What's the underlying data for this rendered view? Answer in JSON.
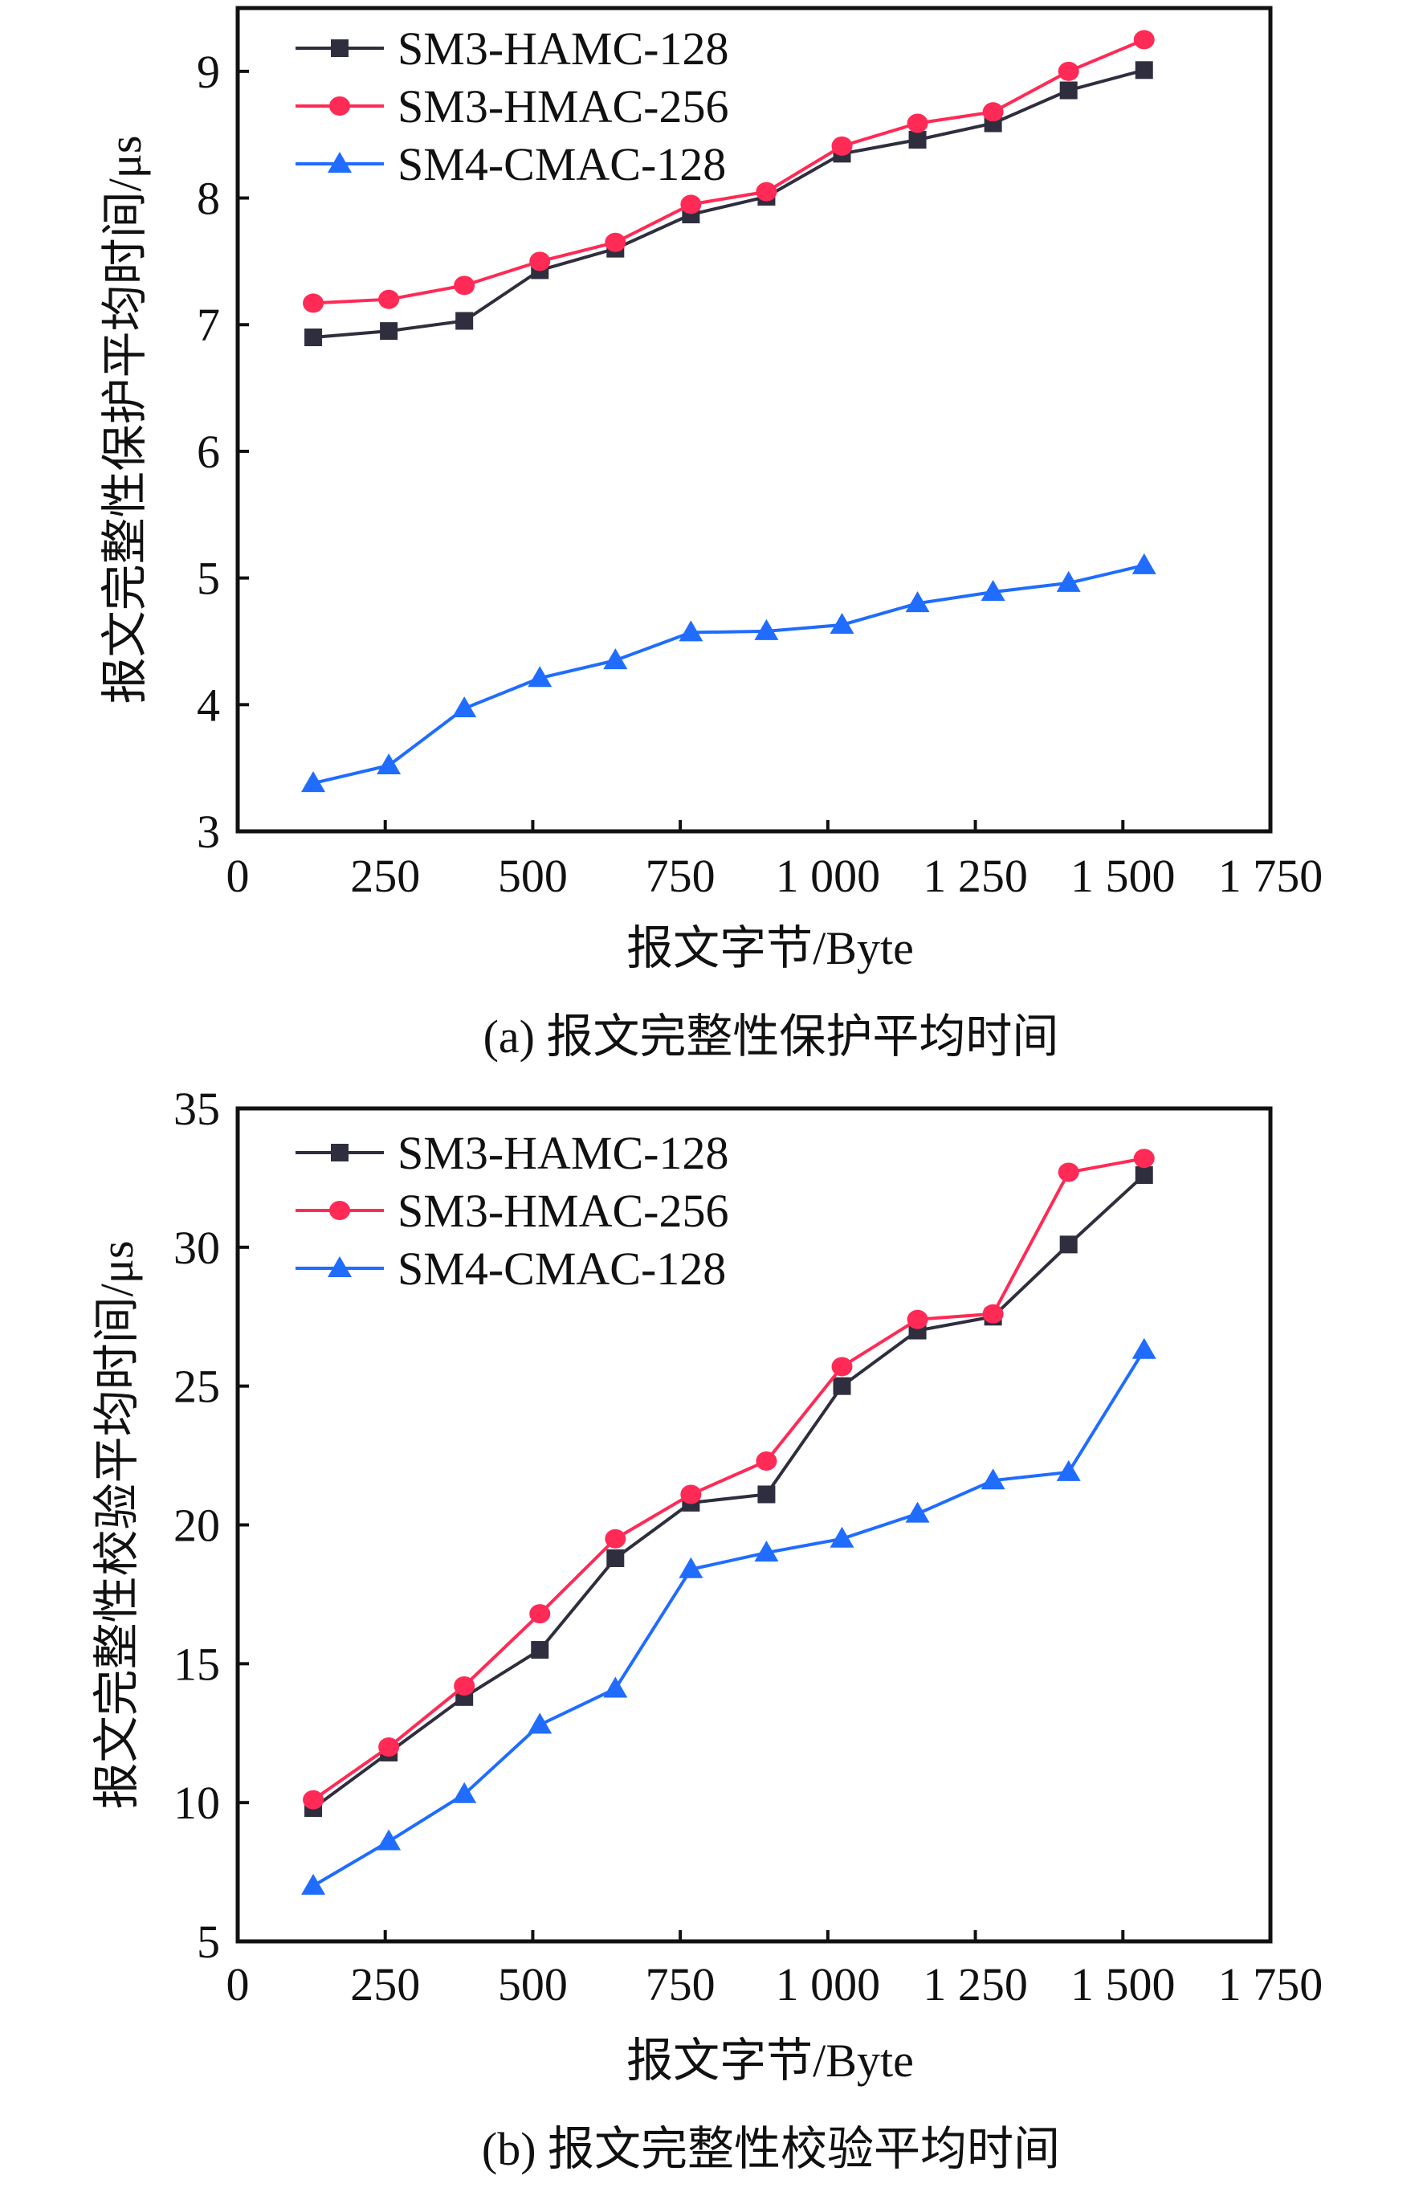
{
  "chart_data": [
    {
      "type": "line",
      "title": "(a) 报文完整性保护平均时间",
      "xlabel": "报文字节/Byte",
      "ylabel": "报文完整性保护平均时间/μs",
      "xlim": [
        0,
        1750
      ],
      "ylim": [
        3,
        9.5
      ],
      "xticks": [
        0,
        250,
        500,
        750,
        1000,
        1250,
        1500,
        1750
      ],
      "xtick_labels": [
        "0",
        "250",
        "500",
        "750",
        "1 000",
        "1 250",
        "1 500",
        "1 750"
      ],
      "yticks": [
        3,
        4,
        5,
        6,
        7,
        8,
        9
      ],
      "ytick_labels": [
        "3",
        "4",
        "5",
        "6",
        "7",
        "8",
        "9"
      ],
      "grid": false,
      "legend_position": "top-left",
      "x": [
        128,
        256,
        384,
        512,
        640,
        768,
        896,
        1024,
        1152,
        1280,
        1408,
        1536
      ],
      "series": [
        {
          "name": "SM3-HAMC-128",
          "marker": "square",
          "color": "#2e2e3e",
          "values": [
            6.9,
            6.95,
            7.03,
            7.43,
            7.6,
            7.87,
            8.01,
            8.35,
            8.46,
            8.59,
            8.85,
            9.01
          ]
        },
        {
          "name": "SM3-HMAC-256",
          "marker": "circle",
          "color": "#ff2a55",
          "values": [
            7.17,
            7.2,
            7.31,
            7.5,
            7.65,
            7.95,
            8.05,
            8.41,
            8.59,
            8.68,
            9.0,
            9.25
          ]
        },
        {
          "name": "SM4-CMAC-128",
          "marker": "triangle",
          "color": "#1f6cff",
          "values": [
            3.38,
            3.52,
            3.97,
            4.21,
            4.35,
            4.57,
            4.58,
            4.63,
            4.8,
            4.89,
            4.96,
            5.1
          ]
        }
      ]
    },
    {
      "type": "line",
      "title": "(b) 报文完整性校验平均时间",
      "xlabel": "报文字节/Byte",
      "ylabel": "报文完整性校验平均时间/μs",
      "xlim": [
        0,
        1750
      ],
      "ylim": [
        5,
        35
      ],
      "xticks": [
        0,
        250,
        500,
        750,
        1000,
        1250,
        1500,
        1750
      ],
      "xtick_labels": [
        "0",
        "250",
        "500",
        "750",
        "1 000",
        "1 250",
        "1 500",
        "1 750"
      ],
      "yticks": [
        5,
        10,
        15,
        20,
        25,
        30,
        35
      ],
      "ytick_labels": [
        "5",
        "10",
        "15",
        "20",
        "25",
        "30",
        "35"
      ],
      "grid": false,
      "legend_position": "top-left",
      "x": [
        128,
        256,
        384,
        512,
        640,
        768,
        896,
        1024,
        1152,
        1280,
        1408,
        1536
      ],
      "series": [
        {
          "name": "SM3-HAMC-128",
          "marker": "square",
          "color": "#2e2e3e",
          "values": [
            9.8,
            11.8,
            13.8,
            15.5,
            18.8,
            20.8,
            21.1,
            25.0,
            27.0,
            27.5,
            30.1,
            32.6
          ]
        },
        {
          "name": "SM3-HMAC-256",
          "marker": "circle",
          "color": "#ff2a55",
          "values": [
            10.1,
            12.0,
            14.2,
            16.8,
            19.5,
            21.1,
            22.3,
            25.7,
            27.4,
            27.6,
            32.7,
            33.2
          ]
        },
        {
          "name": "SM4-CMAC-128",
          "marker": "triangle",
          "color": "#1f6cff",
          "values": [
            7.0,
            8.6,
            10.3,
            12.8,
            14.1,
            18.4,
            19.0,
            19.5,
            20.4,
            21.6,
            21.9,
            26.3
          ]
        }
      ]
    }
  ]
}
